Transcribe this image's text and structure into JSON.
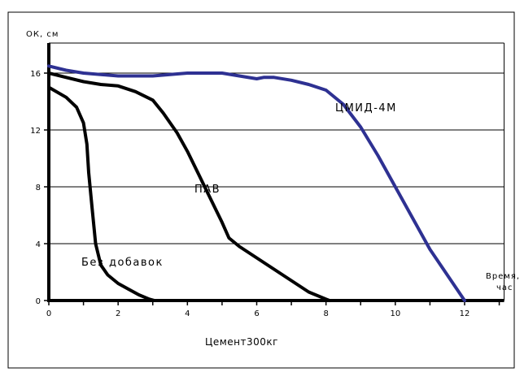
{
  "chart_data": {
    "type": "line",
    "ylabel": "ОК, см",
    "xlabel": "Время, час",
    "xlabel_lines": [
      "Время,",
      "час"
    ],
    "caption": "Цемент300кг",
    "xlim": [
      0,
      13
    ],
    "ylim": [
      0,
      18
    ],
    "xticks": [
      "0",
      "2",
      "4",
      "6",
      "8",
      "10",
      "12"
    ],
    "yticks": [
      "0",
      "4",
      "8",
      "12",
      "16"
    ],
    "grid": "horizontal",
    "series": [
      {
        "name": "ЦМИД-4М",
        "color": "#2e3192",
        "x": [
          0,
          0.5,
          1,
          2,
          3,
          4,
          5,
          5.5,
          6,
          6.2,
          6.5,
          7,
          7.5,
          8,
          8.5,
          9,
          9.5,
          10,
          10.5,
          11,
          11.5,
          12
        ],
        "y": [
          16.5,
          16.2,
          16,
          15.8,
          15.8,
          16,
          16,
          15.8,
          15.6,
          15.7,
          15.7,
          15.5,
          15.2,
          14.8,
          13.8,
          12.2,
          10.2,
          8,
          5.8,
          3.6,
          1.8,
          0
        ]
      },
      {
        "name": "ПАВ",
        "color": "#000000",
        "x": [
          0,
          0.5,
          1,
          1.5,
          2,
          2.5,
          3,
          3.3,
          3.7,
          4,
          4.3,
          4.7,
          5,
          5.2,
          5.5,
          6,
          6.5,
          7,
          7.5,
          8,
          8.1
        ],
        "y": [
          16,
          15.7,
          15.4,
          15.2,
          15.1,
          14.7,
          14.1,
          13.2,
          11.8,
          10.5,
          9,
          7,
          5.5,
          4.4,
          3.8,
          3,
          2.2,
          1.4,
          0.6,
          0.1,
          0
        ]
      },
      {
        "name": "Без добавок",
        "color": "#000000",
        "x": [
          0,
          0.5,
          0.8,
          1,
          1.1,
          1.15,
          1.25,
          1.35,
          1.5,
          1.7,
          2,
          2.3,
          2.6,
          2.9,
          3.05
        ],
        "y": [
          15,
          14.3,
          13.6,
          12.5,
          11,
          9,
          6.5,
          4,
          2.5,
          1.8,
          1.2,
          0.8,
          0.4,
          0.1,
          0
        ]
      }
    ],
    "annotations": [
      "ЦМИД-4М",
      "ПАВ",
      "Без добавок"
    ]
  }
}
